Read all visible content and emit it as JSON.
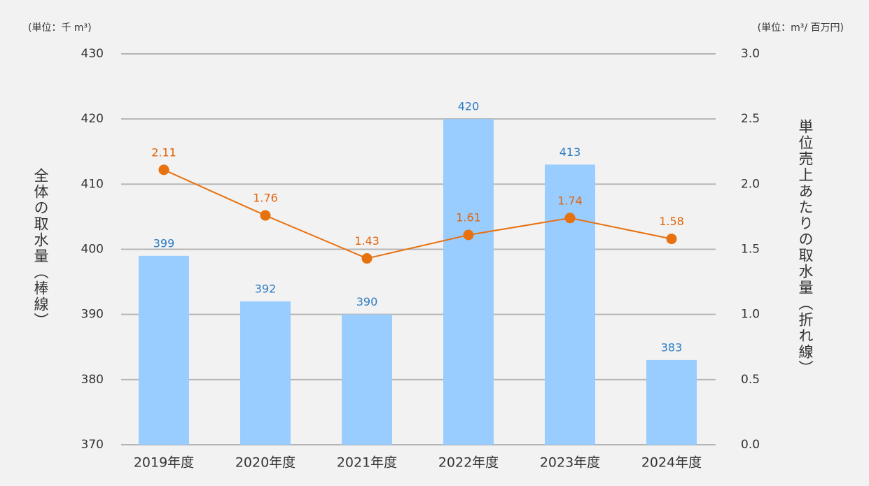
{
  "chart_data": {
    "type": "bar",
    "y_unit": "(単位：千 m³)",
    "y2_unit": "(単位：m³/ 百万円)",
    "ylabel": "全体の取水量（棒線）",
    "y2label": "単位売上あたりの取水量（折れ線）",
    "categories": [
      "2019年度",
      "2020年度",
      "2021年度",
      "2022年度",
      "2023年度",
      "2024年度"
    ],
    "series": [
      {
        "type": "bar",
        "color": "#99ccff",
        "label_color": "#2f7dc4",
        "values": [
          399,
          392,
          390,
          420,
          413,
          383
        ]
      },
      {
        "type": "line",
        "axis": "y2",
        "color": "#e8710f",
        "label_color": "#e0650c",
        "values": [
          2.11,
          1.76,
          1.43,
          1.61,
          1.74,
          1.58
        ]
      }
    ],
    "ylim": [
      370,
      430
    ],
    "yticks": [
      370,
      380,
      390,
      400,
      410,
      420,
      430
    ],
    "y2lim": [
      0,
      3
    ],
    "y2ticks": [
      {
        "value": 0,
        "label": "0.0"
      },
      {
        "value": 0.5,
        "label": "0.5"
      },
      {
        "value": 1,
        "label": "1.0"
      },
      {
        "value": 1.5,
        "label": "1.5"
      },
      {
        "value": 2,
        "label": "2.0"
      },
      {
        "value": 2.5,
        "label": "2.5"
      },
      {
        "value": 3,
        "label": "3.0"
      }
    ],
    "grid": true
  }
}
